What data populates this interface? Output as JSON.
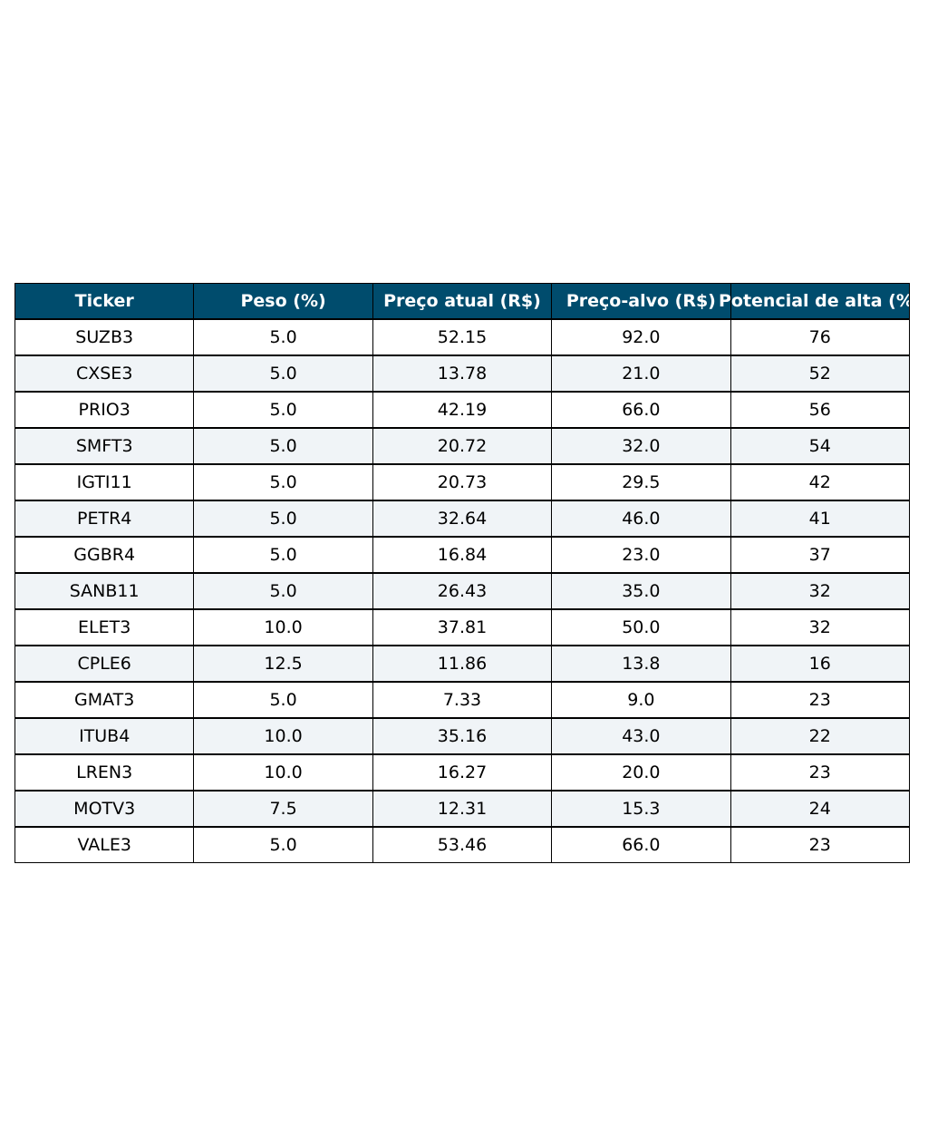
{
  "chart_data": {
    "type": "table",
    "columns": [
      "Ticker",
      "Peso (%)",
      "Preço atual (R$)",
      "Preço-alvo (R$)",
      "Potencial de alta (%)"
    ],
    "rows": [
      [
        "SUZB3",
        "5.0",
        "52.15",
        "92.0",
        "76"
      ],
      [
        "CXSE3",
        "5.0",
        "13.78",
        "21.0",
        "52"
      ],
      [
        "PRIO3",
        "5.0",
        "42.19",
        "66.0",
        "56"
      ],
      [
        "SMFT3",
        "5.0",
        "20.72",
        "32.0",
        "54"
      ],
      [
        "IGTI11",
        "5.0",
        "20.73",
        "29.5",
        "42"
      ],
      [
        "PETR4",
        "5.0",
        "32.64",
        "46.0",
        "41"
      ],
      [
        "GGBR4",
        "5.0",
        "16.84",
        "23.0",
        "37"
      ],
      [
        "SANB11",
        "5.0",
        "26.43",
        "35.0",
        "32"
      ],
      [
        "ELET3",
        "10.0",
        "37.81",
        "50.0",
        "32"
      ],
      [
        "CPLE6",
        "12.5",
        "11.86",
        "13.8",
        "16"
      ],
      [
        "GMAT3",
        "5.0",
        "7.33",
        "9.0",
        "23"
      ],
      [
        "ITUB4",
        "10.0",
        "35.16",
        "43.0",
        "22"
      ],
      [
        "LREN3",
        "10.0",
        "16.27",
        "20.0",
        "23"
      ],
      [
        "MOTV3",
        "7.5",
        "12.31",
        "15.3",
        "24"
      ],
      [
        "VALE3",
        "5.0",
        "53.46",
        "66.0",
        "23"
      ]
    ],
    "colors": {
      "header_bg": "#004c6d",
      "header_text": "#ffffff",
      "alt_row_bg": "#f0f4f7"
    }
  }
}
